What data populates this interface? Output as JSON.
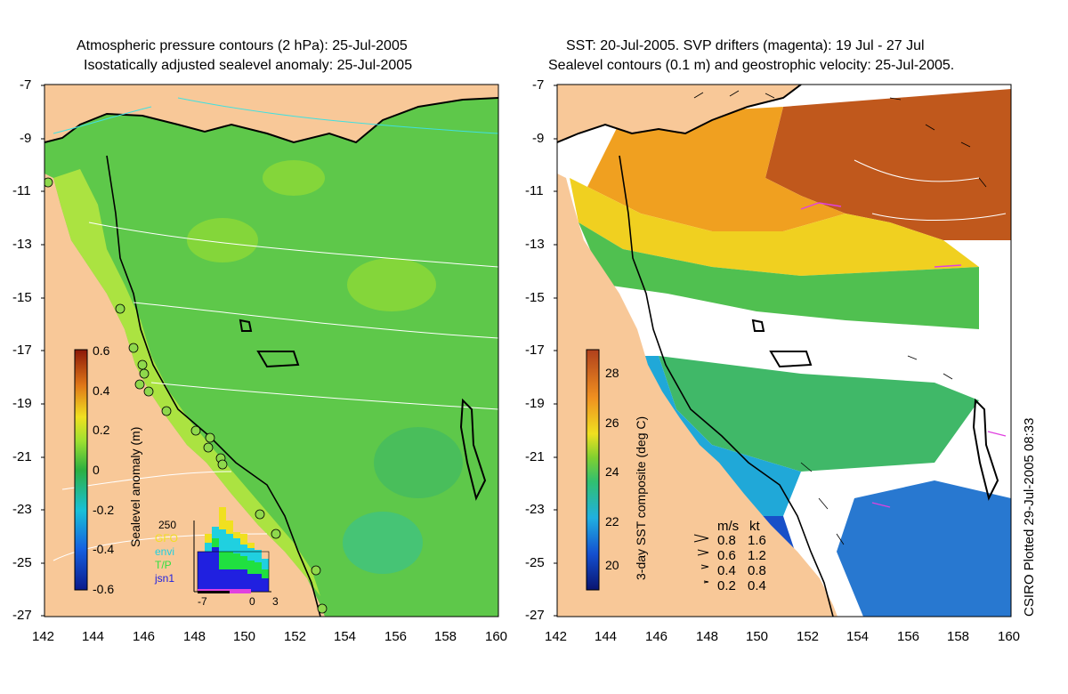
{
  "left_panel": {
    "title_line1": "Atmospheric pressure contours (2 hPa): 25-Jul-2005",
    "title_line2": "Isostatically adjusted sealevel anomaly: 25-Jul-2005",
    "colorbar_label": "Sealevel anomaly (m)",
    "colorbar_ticks": [
      "0.6",
      "0.4",
      "0.2",
      "0",
      "-0.2",
      "-0.4",
      "-0.6"
    ],
    "histogram": {
      "ymax_label": "250",
      "legend": [
        "GFO",
        "envi",
        "T/P",
        "jsn1"
      ],
      "xticks": [
        "-7",
        "0",
        "3"
      ]
    }
  },
  "right_panel": {
    "title_line1": "SST: 20-Jul-2005. SVP drifters (magenta): 19 Jul - 27 Jul",
    "title_line2": "Sealevel contours (0.1 m) and geostrophic velocity: 25-Jul-2005.",
    "colorbar_label": "3-day SST composite (deg C)",
    "colorbar_ticks": [
      "28",
      "26",
      "24",
      "22",
      "20"
    ],
    "velocity_legend": {
      "header_ms": "m/s",
      "header_kt": "kt",
      "rows": [
        {
          "ms": "0.8",
          "kt": "1.6"
        },
        {
          "ms": "0.6",
          "kt": "1.2"
        },
        {
          "ms": "0.4",
          "kt": "0.8"
        },
        {
          "ms": "0.2",
          "kt": "0.4"
        }
      ]
    }
  },
  "axes": {
    "lat_ticks": [
      "-7",
      "-9",
      "-11",
      "-13",
      "-15",
      "-17",
      "-19",
      "-21",
      "-23",
      "-25",
      "-27"
    ],
    "lon_ticks": [
      "142",
      "144",
      "146",
      "148",
      "150",
      "152",
      "154",
      "156",
      "158",
      "160"
    ]
  },
  "credit": "CSIRO Plotted 29-Jul-2005 08:33",
  "colors": {
    "land": "#f8c898",
    "ocean_mid": "#5ec84a",
    "ocean_shelf": "#b4e640",
    "contour": "#ffffff",
    "pressure_contour": "#40e0e0",
    "sst_warm": "#c0581c",
    "sst_yellow": "#f0c020"
  }
}
